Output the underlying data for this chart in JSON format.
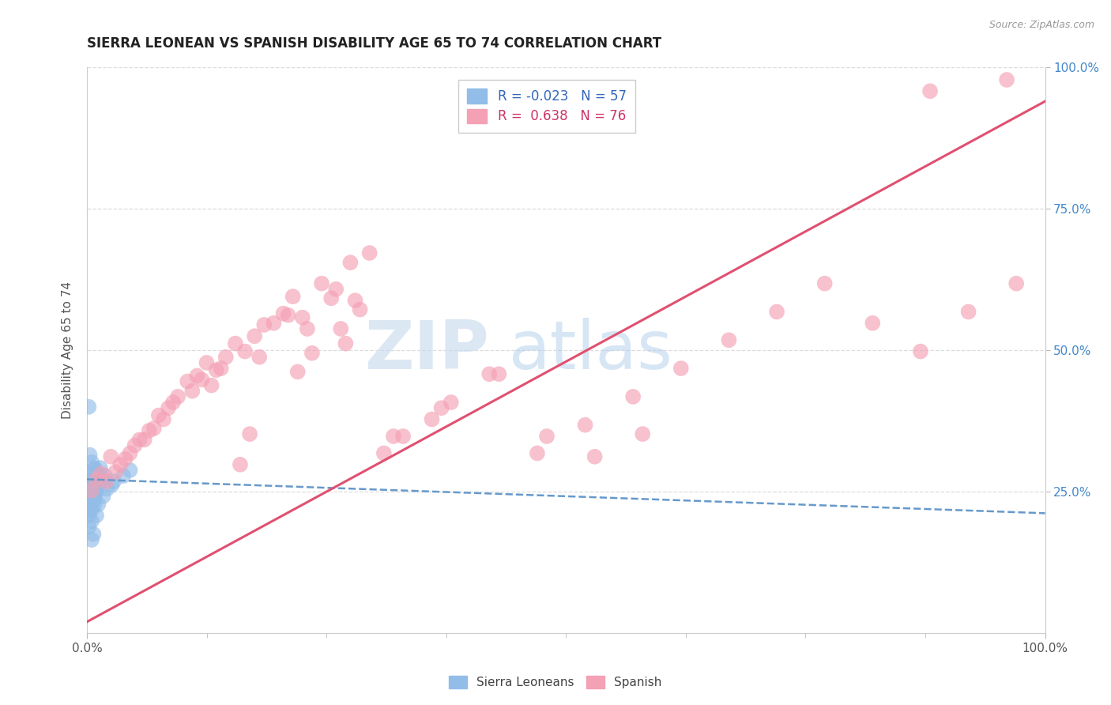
{
  "title": "SIERRA LEONEAN VS SPANISH DISABILITY AGE 65 TO 74 CORRELATION CHART",
  "source_text": "Source: ZipAtlas.com",
  "ylabel": "Disability Age 65 to 74",
  "xlim": [
    0.0,
    1.0
  ],
  "ylim": [
    0.0,
    1.0
  ],
  "y_tick_labels": [
    "25.0%",
    "50.0%",
    "75.0%",
    "100.0%"
  ],
  "y_tick_positions": [
    0.25,
    0.5,
    0.75,
    1.0
  ],
  "blue_color": "#92bde8",
  "pink_color": "#f4a0b5",
  "blue_line_color": "#6699cc",
  "pink_line_color": "#e05070",
  "legend_blue_label": "R = -0.023   N = 57",
  "legend_pink_label": "R =  0.638   N = 76",
  "watermark_zip": "ZIP",
  "watermark_atlas": "atlas",
  "background_color": "#ffffff",
  "grid_color": "#dddddd",
  "blue_slope": -0.06,
  "blue_intercept": 0.272,
  "pink_slope": 0.92,
  "pink_intercept": 0.02,
  "blue_scatter_x": [
    0.005,
    0.008,
    0.003,
    0.006,
    0.01,
    0.007,
    0.012,
    0.004,
    0.002,
    0.008,
    0.005,
    0.009,
    0.007,
    0.003,
    0.006,
    0.011,
    0.008,
    0.005,
    0.01,
    0.002,
    0.007,
    0.005,
    0.014,
    0.002,
    0.008,
    0.011,
    0.005,
    0.003,
    0.008,
    0.005,
    0.016,
    0.007,
    0.005,
    0.002,
    0.009,
    0.005,
    0.008,
    0.002,
    0.005,
    0.012,
    0.005,
    0.002,
    0.007,
    0.005,
    0.01,
    0.002,
    0.005,
    0.008,
    0.038,
    0.045,
    0.028,
    0.021,
    0.014,
    0.019,
    0.026,
    0.009,
    0.017
  ],
  "blue_scatter_y": [
    0.27,
    0.29,
    0.255,
    0.268,
    0.278,
    0.248,
    0.262,
    0.238,
    0.225,
    0.272,
    0.242,
    0.252,
    0.258,
    0.218,
    0.248,
    0.262,
    0.242,
    0.232,
    0.252,
    0.218,
    0.272,
    0.282,
    0.292,
    0.258,
    0.275,
    0.282,
    0.302,
    0.315,
    0.292,
    0.282,
    0.272,
    0.258,
    0.248,
    0.4,
    0.272,
    0.242,
    0.228,
    0.208,
    0.218,
    0.228,
    0.198,
    0.188,
    0.175,
    0.165,
    0.208,
    0.218,
    0.228,
    0.238,
    0.278,
    0.288,
    0.268,
    0.255,
    0.268,
    0.278,
    0.262,
    0.248,
    0.242
  ],
  "pink_scatter_x": [
    0.005,
    0.03,
    0.02,
    0.04,
    0.055,
    0.075,
    0.095,
    0.115,
    0.145,
    0.175,
    0.195,
    0.215,
    0.245,
    0.275,
    0.295,
    0.025,
    0.085,
    0.065,
    0.105,
    0.125,
    0.155,
    0.185,
    0.205,
    0.235,
    0.265,
    0.285,
    0.01,
    0.05,
    0.135,
    0.165,
    0.225,
    0.255,
    0.045,
    0.09,
    0.14,
    0.21,
    0.26,
    0.31,
    0.36,
    0.015,
    0.07,
    0.12,
    0.17,
    0.22,
    0.27,
    0.32,
    0.37,
    0.06,
    0.11,
    0.16,
    0.33,
    0.38,
    0.43,
    0.48,
    0.53,
    0.58,
    0.035,
    0.08,
    0.13,
    0.18,
    0.23,
    0.28,
    0.42,
    0.47,
    0.52,
    0.57,
    0.62,
    0.67,
    0.72,
    0.77,
    0.82,
    0.87,
    0.92,
    0.97,
    0.88,
    0.96
  ],
  "pink_scatter_y": [
    0.252,
    0.285,
    0.268,
    0.308,
    0.342,
    0.385,
    0.418,
    0.455,
    0.488,
    0.525,
    0.548,
    0.595,
    0.618,
    0.655,
    0.672,
    0.312,
    0.398,
    0.358,
    0.445,
    0.478,
    0.512,
    0.545,
    0.565,
    0.495,
    0.538,
    0.572,
    0.272,
    0.332,
    0.465,
    0.498,
    0.558,
    0.592,
    0.318,
    0.408,
    0.468,
    0.562,
    0.608,
    0.318,
    0.378,
    0.282,
    0.362,
    0.448,
    0.352,
    0.462,
    0.512,
    0.348,
    0.398,
    0.342,
    0.428,
    0.298,
    0.348,
    0.408,
    0.458,
    0.348,
    0.312,
    0.352,
    0.298,
    0.378,
    0.438,
    0.488,
    0.538,
    0.588,
    0.458,
    0.318,
    0.368,
    0.418,
    0.468,
    0.518,
    0.568,
    0.618,
    0.548,
    0.498,
    0.568,
    0.618,
    0.958,
    0.978
  ]
}
